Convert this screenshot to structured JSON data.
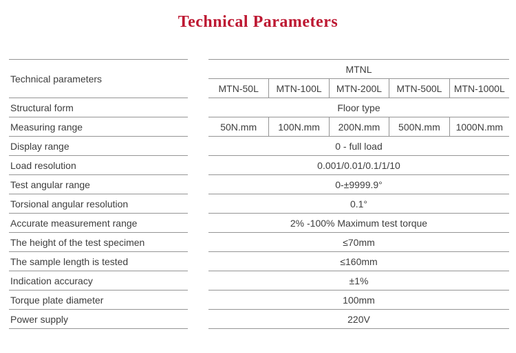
{
  "title": "Technical Parameters",
  "colors": {
    "title": "#bd1832",
    "text": "#3d3d3d",
    "line": "#949494"
  },
  "table": {
    "header": {
      "label": "Technical parameters",
      "series": "MTNL",
      "models": [
        "MTN-50L",
        "MTN-100L",
        "MTN-200L",
        "MTN-500L",
        "MTN-1000L"
      ]
    },
    "rows": [
      {
        "label": "Structural form",
        "value": "Floor type"
      },
      {
        "label": "Measuring range",
        "values": [
          "50N.mm",
          "100N.mm",
          "200N.mm",
          "500N.mm",
          "1000N.mm"
        ]
      },
      {
        "label": "Display range",
        "value": "0 - full load"
      },
      {
        "label": "Load resolution",
        "value": "0.001/0.01/0.1/1/10"
      },
      {
        "label": "Test angular range",
        "value": "0-±9999.9°"
      },
      {
        "label": "Torsional angular resolution",
        "value": "0.1°"
      },
      {
        "label": "Accurate measurement range",
        "value": "2% -100% Maximum test torque"
      },
      {
        "label": "The height of the test specimen",
        "value": "≤70mm"
      },
      {
        "label": "The sample length is tested",
        "value": "≤160mm"
      },
      {
        "label": "Indication accuracy",
        "value": "±1%"
      },
      {
        "label": "Torque plate diameter",
        "value": "100mm"
      },
      {
        "label": "Power supply",
        "value": "220V"
      }
    ]
  }
}
